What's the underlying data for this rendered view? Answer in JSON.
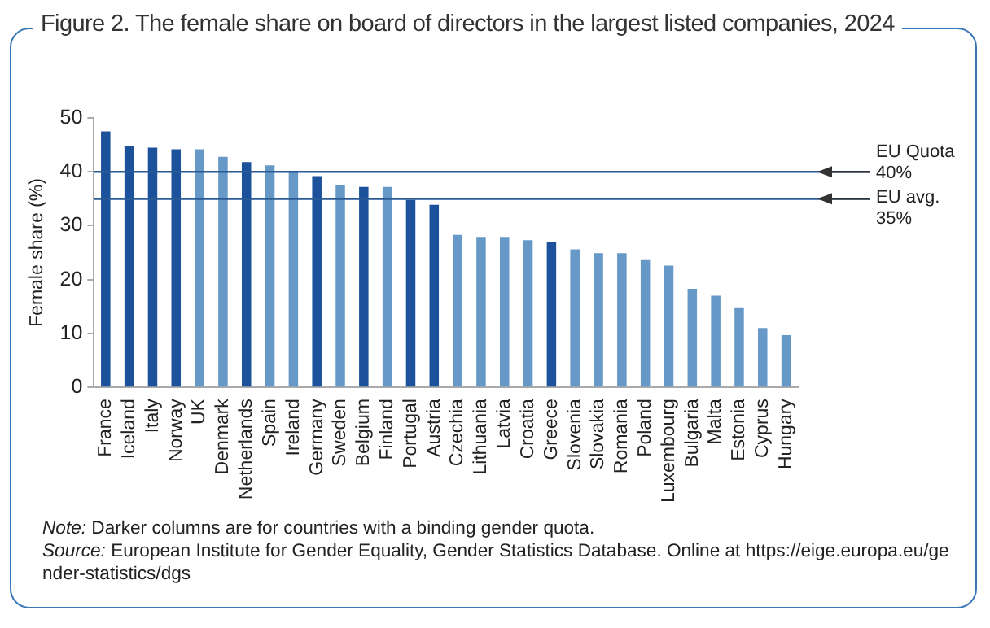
{
  "chart_data": {
    "type": "bar",
    "title": "Figure 2. The female share on board of directors in the largest listed companies, 2024",
    "ylabel": "Female share (%)",
    "categories": [
      "France",
      "Iceland",
      "Italy",
      "Norway",
      "UK",
      "Denmark",
      "Netherlands",
      "Spain",
      "Ireland",
      "Germany",
      "Sweden",
      "Belgium",
      "Finland",
      "Portugal",
      "Austria",
      "Czechia",
      "Lithuania",
      "Latvia",
      "Croatia",
      "Greece",
      "Slovenia",
      "Slovakia",
      "Romania",
      "Poland",
      "Luxembourg",
      "Bulgaria",
      "Malta",
      "Estonia",
      "Cyprus",
      "Hungary"
    ],
    "values": [
      47.5,
      44.8,
      44.5,
      44.2,
      44.2,
      42.8,
      41.8,
      41.2,
      40.1,
      39.2,
      37.5,
      37.2,
      37.2,
      34.8,
      33.9,
      28.3,
      27.9,
      27.9,
      27.3,
      26.9,
      25.6,
      24.9,
      24.9,
      23.6,
      22.6,
      18.3,
      17.0,
      14.7,
      11.0,
      9.7
    ],
    "colors": [
      "#1c519c",
      "#1c519c",
      "#1c519c",
      "#1c519c",
      "#6699c8",
      "#6699c8",
      "#1c519c",
      "#6699c8",
      "#6699c8",
      "#1c519c",
      "#6699c8",
      "#1c519c",
      "#6699c8",
      "#1c519c",
      "#1c519c",
      "#6699c8",
      "#6699c8",
      "#6699c8",
      "#6699c8",
      "#1c519c",
      "#6699c8",
      "#6699c8",
      "#6699c8",
      "#6699c8",
      "#6699c8",
      "#6699c8",
      "#6699c8",
      "#6699c8",
      "#6699c8",
      "#6699c8"
    ],
    "ylim": [
      0,
      50
    ],
    "yticks": [
      0,
      10,
      20,
      30,
      40,
      50
    ],
    "grid": false,
    "legend": false,
    "ref_lines": [
      {
        "axis": "y",
        "value": 40,
        "label": "EU Quota 40%",
        "color": "#2a5b94"
      },
      {
        "axis": "y",
        "value": 35,
        "label": "EU avg. 35%",
        "color": "#2a5b94"
      }
    ],
    "annotations": [
      "Note: Darker columns are for countries with a binding gender quota.",
      "Source: European Institute for Gender Equality, Gender Statistics Database. Online at https://eige.europa.eu/gender-statistics/dgs"
    ]
  }
}
